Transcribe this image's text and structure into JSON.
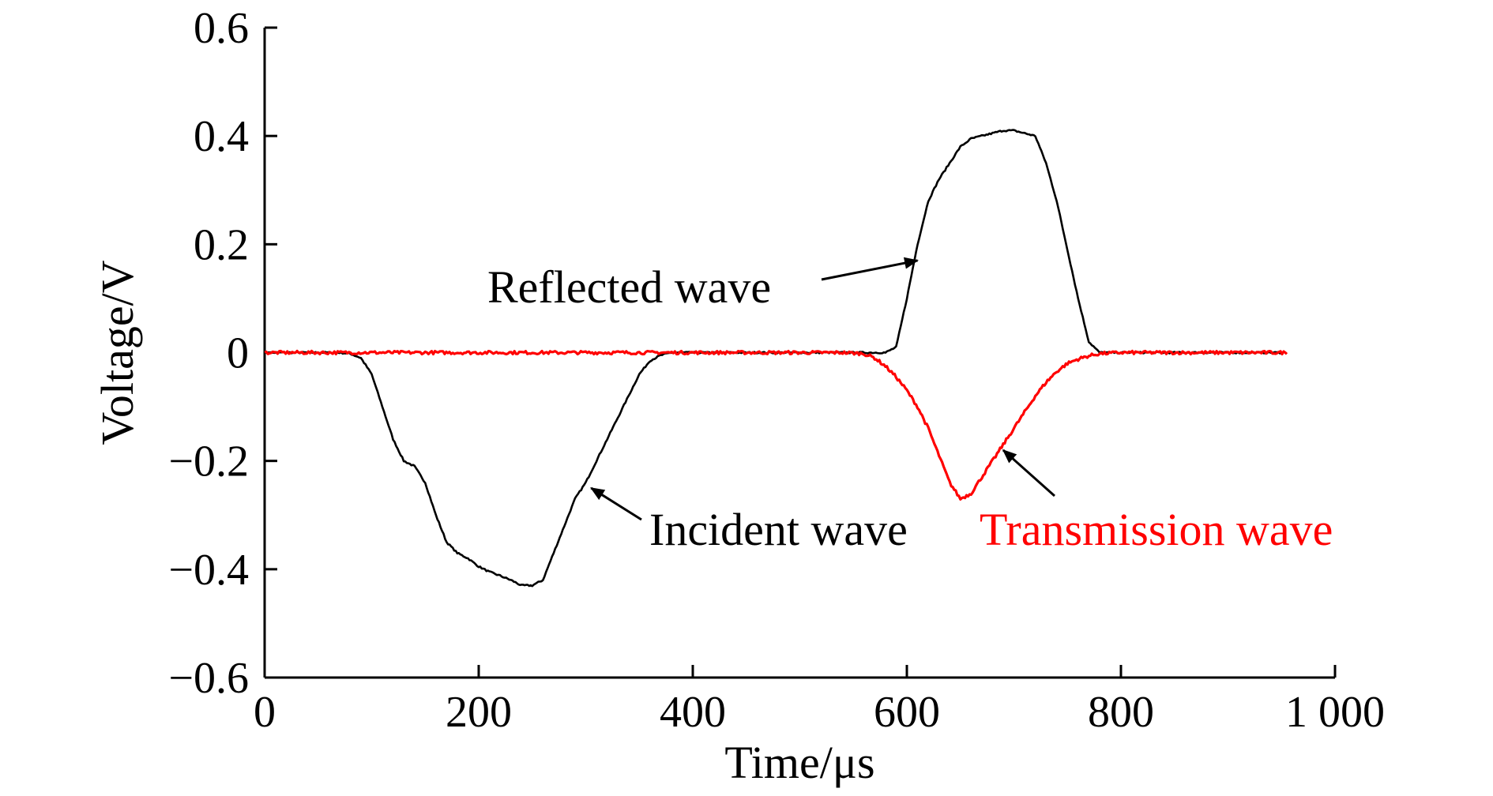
{
  "chart_data": {
    "type": "line",
    "xlabel": "Time/μs",
    "ylabel": "Voltage/V",
    "xlim": [
      0,
      1000
    ],
    "ylim": [
      -0.6,
      0.6
    ],
    "x_ticks": [
      0,
      200,
      400,
      600,
      800,
      1000
    ],
    "x_tick_labels": [
      "0",
      "200",
      "400",
      "600",
      "800",
      "1 000"
    ],
    "y_ticks": [
      -0.6,
      -0.4,
      -0.2,
      0,
      0.2,
      0.4,
      0.6
    ],
    "y_tick_labels": [
      "−0.6",
      "−0.4",
      "−0.2",
      "0",
      "0.2",
      "0.4",
      "0.6"
    ],
    "grid": false,
    "legend": "none",
    "series": [
      {
        "color": "#000000",
        "x": [
          0,
          70,
          80,
          90,
          100,
          110,
          120,
          130,
          140,
          150,
          160,
          170,
          180,
          190,
          200,
          210,
          220,
          230,
          240,
          250,
          260,
          270,
          280,
          290,
          300,
          310,
          320,
          330,
          340,
          350,
          360,
          370,
          380,
          400,
          450,
          500,
          550,
          580,
          590,
          600,
          610,
          620,
          630,
          640,
          650,
          660,
          670,
          680,
          690,
          700,
          710,
          720,
          730,
          740,
          750,
          760,
          770,
          780,
          800,
          850,
          900,
          950
        ],
        "y": [
          0,
          0,
          -0.002,
          -0.01,
          -0.04,
          -0.1,
          -0.16,
          -0.2,
          -0.21,
          -0.24,
          -0.3,
          -0.35,
          -0.37,
          -0.38,
          -0.395,
          -0.405,
          -0.412,
          -0.42,
          -0.43,
          -0.43,
          -0.42,
          -0.37,
          -0.32,
          -0.27,
          -0.24,
          -0.2,
          -0.16,
          -0.12,
          -0.08,
          -0.04,
          -0.015,
          -0.005,
          0,
          0,
          0,
          0,
          0,
          0,
          0.01,
          0.1,
          0.2,
          0.28,
          0.32,
          0.35,
          0.38,
          0.395,
          0.4,
          0.405,
          0.41,
          0.41,
          0.405,
          0.4,
          0.35,
          0.28,
          0.19,
          0.1,
          0.02,
          0,
          0,
          0,
          0,
          0
        ]
      },
      {
        "color": "#ff0000",
        "x": [
          0,
          50,
          100,
          150,
          200,
          250,
          300,
          350,
          400,
          450,
          500,
          540,
          560,
          570,
          580,
          590,
          600,
          610,
          620,
          630,
          640,
          650,
          660,
          670,
          680,
          690,
          700,
          710,
          720,
          730,
          740,
          750,
          760,
          770,
          780,
          800,
          850,
          900,
          955
        ],
        "y": [
          0,
          0,
          0,
          0,
          0,
          0,
          0,
          0,
          0,
          0,
          0,
          0,
          -0.002,
          -0.01,
          -0.025,
          -0.045,
          -0.07,
          -0.1,
          -0.14,
          -0.19,
          -0.24,
          -0.27,
          -0.26,
          -0.23,
          -0.2,
          -0.17,
          -0.14,
          -0.11,
          -0.08,
          -0.055,
          -0.035,
          -0.02,
          -0.012,
          -0.006,
          -0.002,
          0,
          0,
          0,
          0
        ]
      }
    ],
    "annotations": [
      {
        "text": "Reflected wave",
        "color": "#000000",
        "arrow_to": [
          610,
          0.17
        ]
      },
      {
        "text": "Incident wave",
        "color": "#000000",
        "arrow_to": [
          305,
          -0.25
        ]
      },
      {
        "text": "Transmission wave",
        "color": "#ff0000",
        "arrow_to": [
          690,
          -0.18
        ]
      }
    ]
  }
}
